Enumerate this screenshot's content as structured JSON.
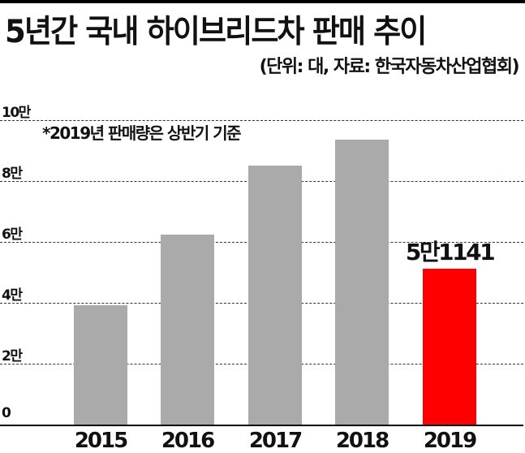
{
  "header": {
    "title": "5년간 국내 하이브리드차 판매 추이",
    "subtitle": "(단위: 대, 자료: 한국자동차산업협회)"
  },
  "note": "*2019년 판매량은 상반기 기준",
  "colors": {
    "bar_default": "#aaaaaa",
    "bar_highlight": "#ff0000",
    "gridline": "#333333",
    "axis": "#000000"
  },
  "yaxis": {
    "ticks": [
      {
        "value": 0,
        "label": "0"
      },
      {
        "value": 20000,
        "label": "2만"
      },
      {
        "value": 40000,
        "label": "4만"
      },
      {
        "value": 60000,
        "label": "6만"
      },
      {
        "value": 80000,
        "label": "8만"
      },
      {
        "value": 100000,
        "label": "10만"
      }
    ]
  },
  "highlight_label": "5만1141",
  "chart_data": {
    "type": "bar",
    "title": "5년간 국내 하이브리드차 판매 추이",
    "subtitle": "(단위: 대, 자료: 한국자동차산업협회)",
    "annotation": "*2019년 판매량은 상반기 기준",
    "categories": [
      "2015",
      "2016",
      "2017",
      "2018",
      "2019"
    ],
    "values": [
      39200,
      62400,
      85000,
      93600,
      51141
    ],
    "data_labels": {
      "2019": "5만1141"
    },
    "highlight": "2019",
    "xlabel": "",
    "ylabel": "대",
    "ylim": [
      0,
      100000
    ],
    "yticks": [
      "0",
      "2만",
      "4만",
      "6만",
      "8만",
      "10만"
    ],
    "grid": true,
    "legend": null
  }
}
